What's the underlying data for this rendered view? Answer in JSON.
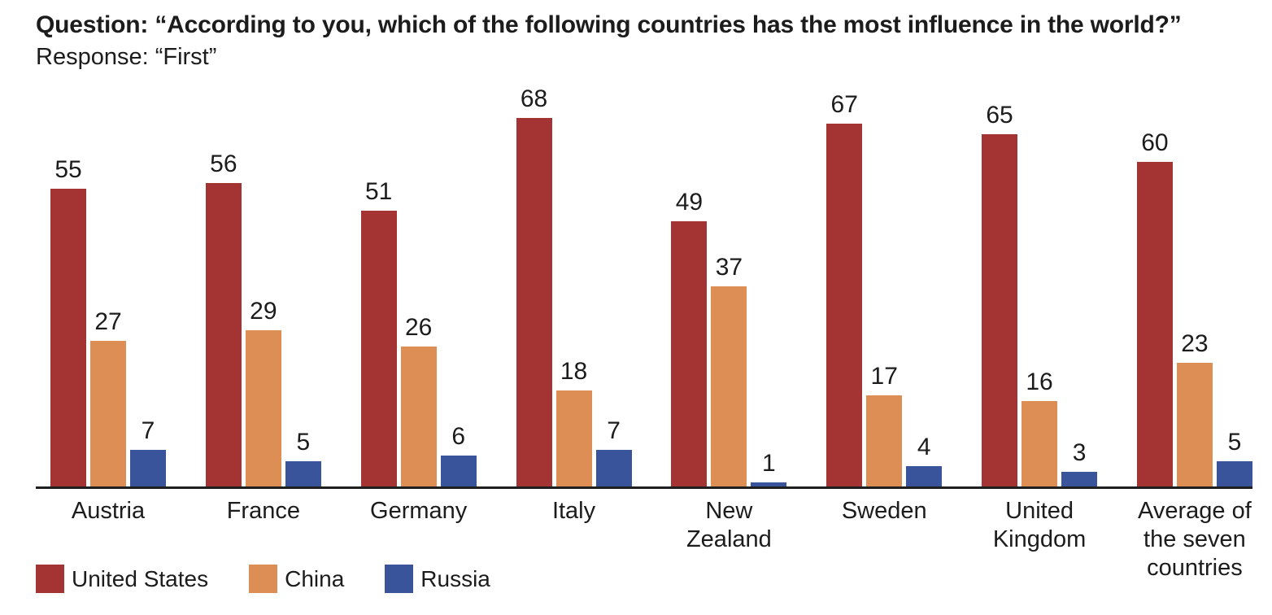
{
  "title": {
    "line1": "Question: “According to you, which of the following countries has the most influence in the world?”",
    "line2": "Response: “First”"
  },
  "chart_data": {
    "type": "bar",
    "title": "Question: “According to you, which of the following countries has the most influence in the world?” Response: “First”",
    "categories": [
      "Austria",
      "France",
      "Germany",
      "Italy",
      "New\nZealand",
      "Sweden",
      "United\nKingdom",
      "Average of\nthe seven\ncountries"
    ],
    "series": [
      {
        "name": "United States",
        "color": "#A43433",
        "values": [
          55,
          56,
          51,
          68,
          49,
          67,
          65,
          60
        ]
      },
      {
        "name": "China",
        "color": "#DD8E54",
        "values": [
          27,
          29,
          26,
          18,
          37,
          17,
          16,
          23
        ]
      },
      {
        "name": "Russia",
        "color": "#39549B",
        "values": [
          7,
          5,
          6,
          7,
          1,
          4,
          3,
          5
        ]
      }
    ],
    "value_labels": "above each bar",
    "xlabel": "",
    "ylabel": "",
    "ylim": [
      0,
      68
    ],
    "grid": false,
    "y_axis_ticks": "none",
    "legend_position": "bottom-left",
    "axis_line_color": "#1F1F1F",
    "text_color": "#1C1C1C"
  }
}
